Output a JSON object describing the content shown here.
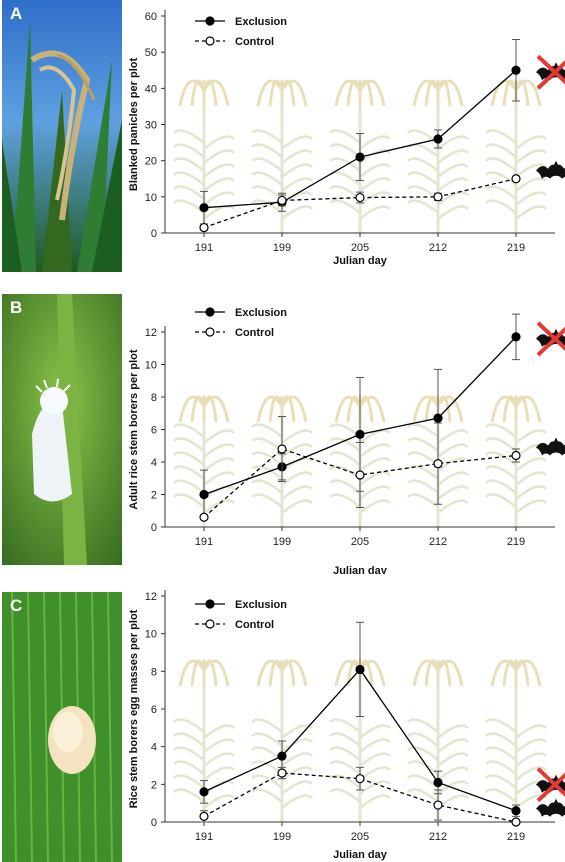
{
  "panels": [
    {
      "letter": "A",
      "photo_subject": "rice panicles in field"
    },
    {
      "letter": "B",
      "photo_subject": "white stem borer moth on leaf"
    },
    {
      "letter": "C",
      "photo_subject": "stem borer egg mass on leaf"
    }
  ],
  "colors": {
    "exclusion": "#000000",
    "control": "#000000",
    "cross": "#e53935",
    "bat": "#111111",
    "rice": "#dfe8cf"
  },
  "icons": {
    "excluded": "cross-bat-icon",
    "present": "bat-icon"
  },
  "chart_data": [
    {
      "type": "line",
      "categories": [
        "191",
        "199",
        "205",
        "212",
        "219"
      ],
      "xlabel": "Julian day",
      "ylabel": "Blanked panicles per plot",
      "ylim": [
        0,
        60
      ],
      "yticks": [
        0,
        10,
        20,
        30,
        40,
        50,
        60
      ],
      "legend": "top-left",
      "series": [
        {
          "name": "Exclusion",
          "values": [
            7,
            8.5,
            21,
            26,
            45
          ],
          "err": [
            4.5,
            2.5,
            6.5,
            2.5,
            8.5
          ]
        },
        {
          "name": "Control",
          "values": [
            1.5,
            9,
            9.8,
            10,
            15
          ],
          "err": [
            0,
            1.5,
            1.5,
            1,
            0
          ]
        }
      ]
    },
    {
      "type": "line",
      "categories": [
        "191",
        "199",
        "205",
        "212",
        "219"
      ],
      "xlabel": "Julian day",
      "ylabel": "Adult rice stem borers per plot",
      "ylim": [
        0,
        12
      ],
      "yticks": [
        0,
        2,
        4,
        6,
        8,
        10,
        12
      ],
      "legend": "top-left",
      "series": [
        {
          "name": "Exclusion",
          "values": [
            2,
            3.7,
            5.7,
            6.7,
            11.7
          ],
          "err": [
            1.5,
            0.8,
            3.5,
            3,
            1.4
          ]
        },
        {
          "name": "Control",
          "values": [
            0.6,
            4.8,
            3.2,
            3.9,
            4.4
          ],
          "err": [
            0,
            2,
            2,
            2.5,
            0.4
          ]
        }
      ]
    },
    {
      "type": "line",
      "categories": [
        "191",
        "199",
        "205",
        "212",
        "219"
      ],
      "xlabel": "Julian day",
      "ylabel": "Rice stem borers egg masses per plot",
      "ylim": [
        0,
        12
      ],
      "yticks": [
        0,
        2,
        4,
        6,
        8,
        10,
        12
      ],
      "legend": "top-left",
      "series": [
        {
          "name": "Exclusion",
          "values": [
            1.6,
            3.5,
            8.1,
            2.1,
            0.6
          ],
          "err": [
            0.6,
            0.8,
            2.5,
            0.6,
            0.3
          ]
        },
        {
          "name": "Control",
          "values": [
            0.3,
            2.6,
            2.3,
            0.9,
            0
          ],
          "err": [
            0.3,
            0.3,
            0.6,
            0.8,
            0
          ]
        }
      ]
    }
  ]
}
